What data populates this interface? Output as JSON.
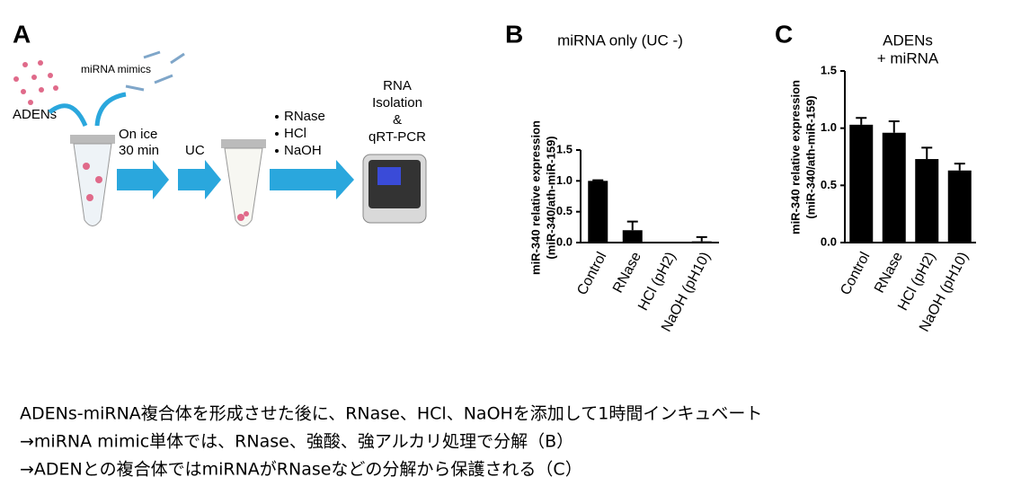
{
  "panels": {
    "a": "A",
    "b": "B",
    "c": "C"
  },
  "diagram": {
    "adens": "ADENs",
    "mimics": "miRNA mimics",
    "incubation": [
      "On ice",
      "30 min"
    ],
    "uc": "UC",
    "treatments": [
      "RNase",
      "HCl",
      "NaOH"
    ],
    "analysis": [
      "RNA",
      "Isolation",
      "&",
      "qRT-PCR"
    ]
  },
  "chart_data": [
    {
      "type": "bar",
      "title": [
        "miRNA only (UC -)"
      ],
      "ylabel": [
        "miR-340 relative expression",
        "(miR-340/ath-miR-159)"
      ],
      "categories": [
        "Control",
        "RNase",
        "HCl (pH2)",
        "NaOH (pH10)"
      ],
      "series": [
        {
          "color": "#000000",
          "values": [
            1.0,
            0.2,
            0.0,
            0.02
          ],
          "errors": [
            0.01,
            0.14,
            0.0,
            0.07
          ]
        }
      ],
      "ylim": [
        0,
        1.5
      ],
      "yticks": [
        {
          "value": 0,
          "label": "0.0"
        },
        0.5,
        {
          "value": 1,
          "label": "1.0"
        },
        1.5
      ]
    },
    {
      "type": "bar",
      "title": [
        "ADENs",
        "+ miRNA"
      ],
      "ylabel": [
        "miR-340 relative expression",
        "(miR-340/ath-miR-159)"
      ],
      "categories": [
        "Control",
        "RNase",
        "HCl (pH2)",
        "NaOH (pH10)"
      ],
      "series": [
        {
          "color": "#000000",
          "values": [
            1.03,
            0.96,
            0.73,
            0.63
          ],
          "errors": [
            0.06,
            0.1,
            0.1,
            0.06
          ]
        }
      ],
      "ylim": [
        0,
        1.5
      ],
      "yticks": [
        {
          "value": 0,
          "label": "0.0"
        },
        0.5,
        {
          "value": 1,
          "label": "1.0"
        },
        1.5
      ]
    }
  ],
  "caption": [
    "ADENs-miRNA複合体を形成させた後に、RNase、HCl、NaOHを添加して1時間インキュベート",
    "→miRNA mimic単体では、RNase、強酸、強アルカリ処理で分解（B）",
    "→ADENとの複合体ではmiRNAがRNaseなどの分解から保護される（C）"
  ]
}
